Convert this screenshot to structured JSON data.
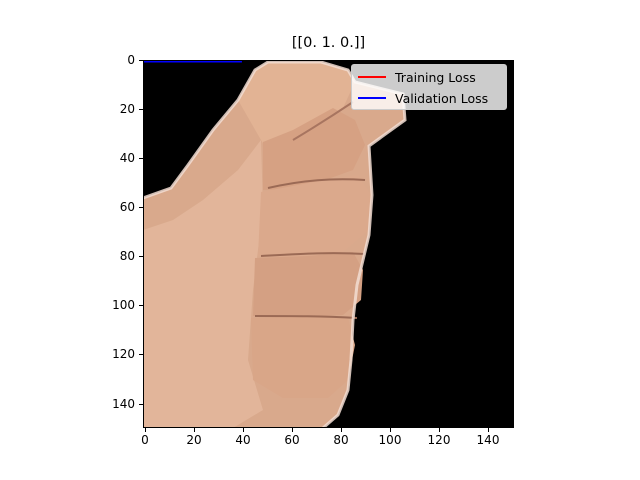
{
  "figure": {
    "title": "[[0. 1. 0.]]"
  },
  "image": {
    "description_icon": "hand-fist-image"
  },
  "axes": {
    "yticks": [
      "0",
      "20",
      "40",
      "60",
      "80",
      "100",
      "120",
      "140"
    ],
    "xticks": [
      "0",
      "20",
      "40",
      "60",
      "80",
      "100",
      "120",
      "140"
    ]
  },
  "legend": {
    "entries": [
      {
        "label": "Training Loss",
        "color": "#ff0000"
      },
      {
        "label": "Validation Loss",
        "color": "#0000ff"
      }
    ]
  },
  "chart_data": {
    "type": "line",
    "title": "[[0. 1. 0.]]",
    "xlabel": "",
    "ylabel": "",
    "xlim": [
      0,
      150
    ],
    "ylim": [
      150,
      0
    ],
    "x_ticks": [
      0,
      20,
      40,
      60,
      80,
      100,
      120,
      140
    ],
    "y_ticks": [
      0,
      20,
      40,
      60,
      80,
      100,
      120,
      140
    ],
    "legend_position": "top-right",
    "grid": false,
    "series": [
      {
        "name": "Training Loss",
        "color": "#ff0000",
        "x": [],
        "y": []
      },
      {
        "name": "Validation Loss",
        "color": "#0000ff",
        "x": [
          0,
          40
        ],
        "y": [
          0,
          0
        ]
      }
    ]
  }
}
